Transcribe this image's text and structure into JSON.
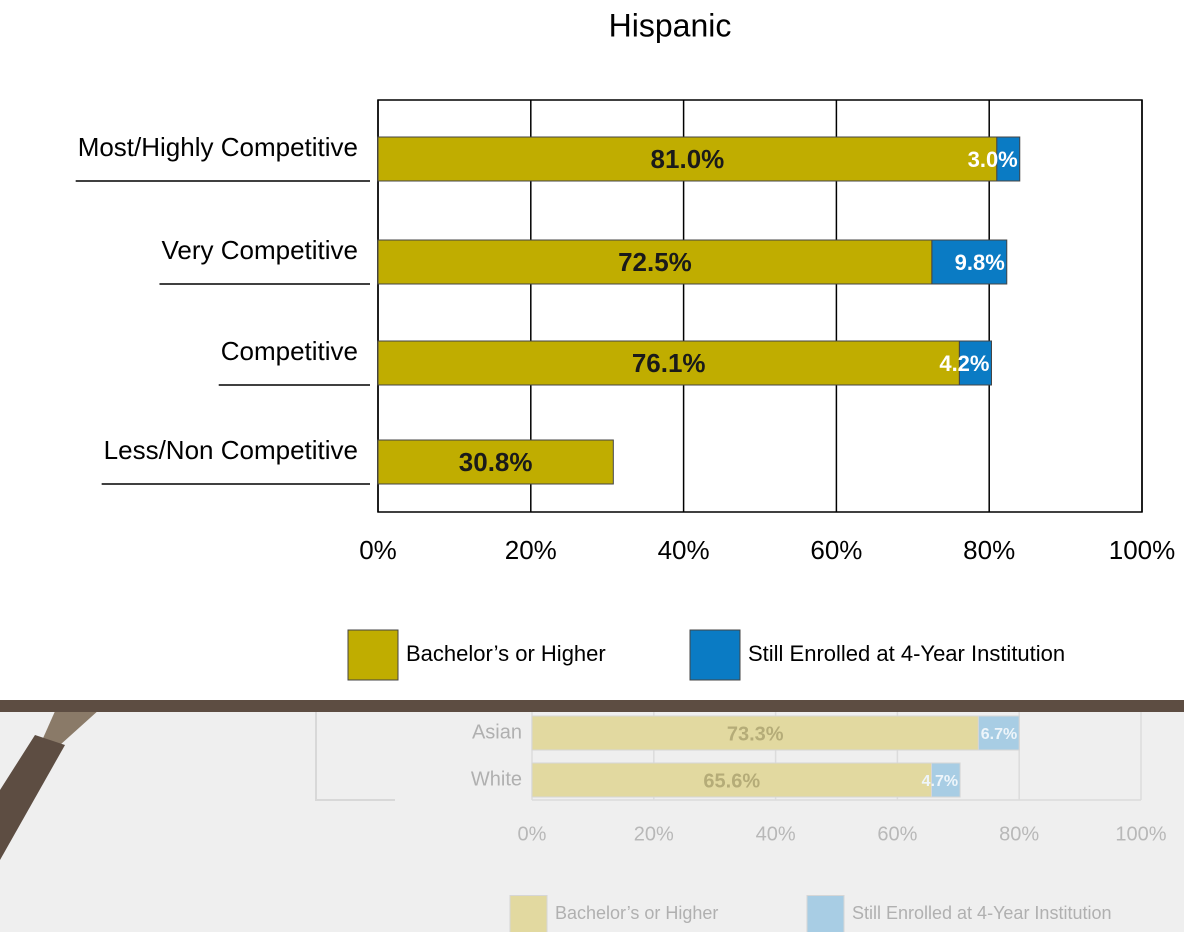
{
  "chart_data": [
    {
      "type": "stacked-bar",
      "orientation": "horizontal",
      "title": "Hispanic",
      "categories": [
        "Most/Highly Competitive",
        "Very Competitive",
        "Competitive",
        "Less/Non Competitive"
      ],
      "series": [
        {
          "name": "Bachelor’s or Higher",
          "color": "#c0ad00",
          "values": [
            81.0,
            72.5,
            76.1,
            30.8
          ],
          "value_labels": [
            "81.0%",
            "72.5%",
            "76.1%",
            "30.8%"
          ]
        },
        {
          "name": "Still Enrolled at 4-Year Institution",
          "color": "#0a7bc4",
          "values": [
            3.0,
            9.8,
            4.2,
            null
          ],
          "value_labels": [
            "3.0%",
            "9.8%",
            "4.2%",
            null
          ]
        }
      ],
      "xlim": [
        0,
        100
      ],
      "xticks": [
        {
          "value": 0,
          "label": "0%"
        },
        {
          "value": 20,
          "label": "20%"
        },
        {
          "value": 40,
          "label": "40%"
        },
        {
          "value": 60,
          "label": "60%"
        },
        {
          "value": 80,
          "label": "80%"
        },
        {
          "value": 100,
          "label": "100%"
        }
      ],
      "grid": true
    },
    {
      "type": "stacked-bar",
      "orientation": "horizontal",
      "categories": [
        "Asian",
        "White"
      ],
      "series": [
        {
          "name": "Bachelor’s or Higher",
          "color": "#e2d9a0",
          "values": [
            73.3,
            65.6
          ],
          "value_labels": [
            "73.3%",
            "65.6%"
          ]
        },
        {
          "name": "Still Enrolled at 4-Year Institution",
          "color": "#a8cde4",
          "values": [
            6.7,
            4.7
          ],
          "value_labels": [
            "6.7%",
            "4.7%"
          ]
        }
      ],
      "xlim": [
        0,
        100
      ],
      "xticks": [
        {
          "value": 0,
          "label": "0%"
        },
        {
          "value": 20,
          "label": "20%"
        },
        {
          "value": 40,
          "label": "40%"
        },
        {
          "value": 60,
          "label": "60%"
        },
        {
          "value": 80,
          "label": "80%"
        },
        {
          "value": 100,
          "label": "100%"
        }
      ],
      "grid": true
    }
  ]
}
